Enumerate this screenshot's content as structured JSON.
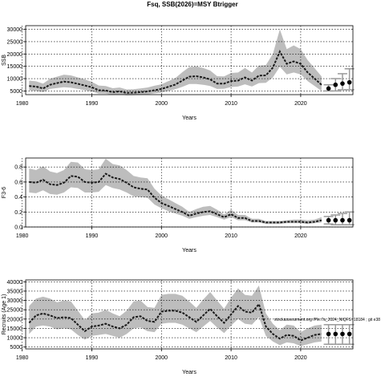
{
  "figure": {
    "title": "Fsq, SSB(2026)=MSY Btrigger",
    "annotation": "stockassessment.org /Ple.7a_2024_NIQFS r18184 ; git e38"
  },
  "chart_data": [
    {
      "type": "line",
      "xlabel": "Years",
      "ylabel": "SSB",
      "xlim": [
        1980.5,
        2027.5
      ],
      "ylim": [
        3500,
        31500
      ],
      "xticks": [
        1980,
        1990,
        2000,
        2010,
        2020
      ],
      "yticks": [
        5000,
        10000,
        15000,
        20000,
        25000,
        30000
      ],
      "grid": true,
      "x": [
        1981,
        1982,
        1983,
        1984,
        1985,
        1986,
        1987,
        1988,
        1989,
        1990,
        1991,
        1992,
        1993,
        1994,
        1995,
        1996,
        1997,
        1998,
        1999,
        2000,
        2001,
        2002,
        2003,
        2004,
        2005,
        2006,
        2007,
        2008,
        2009,
        2010,
        2011,
        2012,
        2013,
        2014,
        2015,
        2016,
        2017,
        2018,
        2019,
        2020,
        2021,
        2022,
        2023
      ],
      "estimate": [
        7000,
        6800,
        6000,
        7500,
        8200,
        8800,
        8500,
        7900,
        7200,
        6500,
        5300,
        5200,
        4500,
        4800,
        4200,
        4300,
        4500,
        4800,
        5300,
        5800,
        6700,
        7600,
        9200,
        10800,
        11000,
        10500,
        9700,
        8000,
        8000,
        9000,
        9200,
        10500,
        9200,
        11200,
        11300,
        14500,
        21000,
        16000,
        17000,
        16000,
        12500,
        10000,
        7500
      ],
      "lower": [
        5200,
        5000,
        4500,
        5800,
        6200,
        6500,
        6300,
        5800,
        5300,
        4800,
        3900,
        3900,
        3400,
        3600,
        3200,
        3300,
        3400,
        3600,
        4000,
        4300,
        5000,
        5700,
        6700,
        7800,
        7800,
        7500,
        7000,
        5800,
        5900,
        6600,
        6800,
        7700,
        6800,
        8200,
        8300,
        10500,
        14800,
        11700,
        12500,
        11700,
        9000,
        7000,
        5000
      ],
      "upper": [
        9200,
        8900,
        8000,
        9900,
        10800,
        11600,
        11300,
        10500,
        9700,
        8700,
        7200,
        7000,
        6100,
        6400,
        5600,
        5700,
        6000,
        6400,
        7100,
        7700,
        9000,
        10200,
        12600,
        14700,
        15000,
        14300,
        13300,
        11000,
        10900,
        12300,
        12500,
        14300,
        12500,
        15300,
        15500,
        20000,
        30000,
        22000,
        23500,
        22000,
        17500,
        14200,
        10900
      ],
      "projection": {
        "x": [
          2024,
          2025,
          2026,
          2027
        ],
        "values": [
          6000,
          7500,
          8000,
          8500
        ],
        "lower": [
          5000,
          5000,
          5500,
          5500
        ],
        "upper": [
          7500,
          10000,
          12000,
          14000
        ]
      }
    },
    {
      "type": "line",
      "xlabel": "Years",
      "ylabel": "F3-6",
      "xlim": [
        1980.5,
        2027.5
      ],
      "ylim": [
        0.0,
        0.92
      ],
      "xticks": [
        1980,
        1990,
        2000,
        2010,
        2020
      ],
      "yticks": [
        0.0,
        0.2,
        0.4,
        0.6,
        0.8
      ],
      "yticklabels": [
        "0.0",
        "0.2",
        "0.4",
        "0.6",
        "0.8"
      ],
      "grid": true,
      "x": [
        1981,
        1982,
        1983,
        1984,
        1985,
        1986,
        1987,
        1988,
        1989,
        1990,
        1991,
        1992,
        1993,
        1994,
        1995,
        1996,
        1997,
        1998,
        1999,
        2000,
        2001,
        2002,
        2003,
        2004,
        2005,
        2006,
        2007,
        2008,
        2009,
        2010,
        2011,
        2012,
        2013,
        2014,
        2015,
        2016,
        2017,
        2018,
        2019,
        2020,
        2021,
        2022,
        2023
      ],
      "estimate": [
        0.6,
        0.59,
        0.63,
        0.57,
        0.56,
        0.59,
        0.68,
        0.67,
        0.6,
        0.59,
        0.6,
        0.71,
        0.66,
        0.64,
        0.59,
        0.53,
        0.51,
        0.5,
        0.39,
        0.32,
        0.28,
        0.24,
        0.2,
        0.15,
        0.18,
        0.2,
        0.21,
        0.17,
        0.13,
        0.17,
        0.12,
        0.12,
        0.08,
        0.08,
        0.06,
        0.06,
        0.06,
        0.07,
        0.07,
        0.07,
        0.06,
        0.07,
        0.09
      ],
      "lower": [
        0.46,
        0.45,
        0.49,
        0.44,
        0.43,
        0.46,
        0.53,
        0.52,
        0.46,
        0.46,
        0.47,
        0.56,
        0.52,
        0.5,
        0.46,
        0.41,
        0.4,
        0.39,
        0.3,
        0.25,
        0.21,
        0.18,
        0.15,
        0.11,
        0.13,
        0.15,
        0.16,
        0.13,
        0.1,
        0.13,
        0.09,
        0.09,
        0.06,
        0.06,
        0.04,
        0.04,
        0.04,
        0.05,
        0.05,
        0.05,
        0.04,
        0.05,
        0.06
      ],
      "upper": [
        0.78,
        0.76,
        0.81,
        0.74,
        0.72,
        0.76,
        0.87,
        0.86,
        0.77,
        0.76,
        0.77,
        0.91,
        0.84,
        0.82,
        0.76,
        0.68,
        0.66,
        0.65,
        0.51,
        0.42,
        0.37,
        0.32,
        0.27,
        0.2,
        0.24,
        0.27,
        0.28,
        0.23,
        0.17,
        0.23,
        0.16,
        0.16,
        0.11,
        0.11,
        0.08,
        0.08,
        0.08,
        0.09,
        0.1,
        0.1,
        0.09,
        0.1,
        0.13
      ],
      "projection": {
        "x": [
          2024,
          2025,
          2026,
          2027
        ],
        "values": [
          0.09,
          0.09,
          0.09,
          0.09
        ],
        "lower": [
          0.04,
          0.03,
          0.03,
          0.03
        ],
        "upper": [
          0.14,
          0.16,
          0.18,
          0.2
        ]
      }
    },
    {
      "type": "line",
      "xlabel": "Years",
      "ylabel": "Recruits (Age 1)",
      "xlim": [
        1980.5,
        2027.5
      ],
      "ylim": [
        4000,
        41000
      ],
      "xticks": [
        1980,
        1990,
        2000,
        2010,
        2020
      ],
      "yticks": [
        5000,
        10000,
        15000,
        20000,
        25000,
        30000,
        35000,
        40000
      ],
      "grid": true,
      "x": [
        1981,
        1982,
        1983,
        1984,
        1985,
        1986,
        1987,
        1988,
        1989,
        1990,
        1991,
        1992,
        1993,
        1994,
        1995,
        1996,
        1997,
        1998,
        1999,
        2000,
        2001,
        2002,
        2003,
        2004,
        2005,
        2006,
        2007,
        2008,
        2009,
        2010,
        2011,
        2012,
        2013,
        2014,
        2015,
        2016,
        2017,
        2018,
        2019,
        2020,
        2021,
        2022,
        2023
      ],
      "estimate": [
        18000,
        22000,
        23000,
        22000,
        20500,
        21000,
        20500,
        17000,
        13500,
        16000,
        16500,
        17500,
        16000,
        15000,
        17000,
        21000,
        21500,
        19000,
        18500,
        24000,
        24500,
        24500,
        23500,
        21000,
        18500,
        22000,
        25500,
        21500,
        18000,
        22500,
        27000,
        24000,
        23500,
        28000,
        16000,
        12000,
        9500,
        11500,
        11000,
        8500,
        10000,
        11500,
        12000
      ],
      "lower": [
        12000,
        16000,
        16500,
        16000,
        14500,
        15000,
        14500,
        11500,
        9000,
        11000,
        11500,
        12000,
        11000,
        10000,
        12000,
        15000,
        15500,
        13500,
        13000,
        17500,
        18000,
        18000,
        17000,
        15000,
        13000,
        16000,
        19000,
        15500,
        12500,
        16500,
        20000,
        17500,
        17000,
        21000,
        11000,
        8000,
        6000,
        7500,
        7000,
        5500,
        6500,
        7500,
        8000
      ],
      "upper": [
        27000,
        31000,
        32000,
        31000,
        29000,
        30000,
        29500,
        24500,
        19500,
        23000,
        23500,
        25000,
        23000,
        21500,
        24500,
        29500,
        30000,
        26500,
        26000,
        33000,
        33500,
        33500,
        32500,
        29500,
        26000,
        30500,
        34500,
        30000,
        25500,
        31500,
        36500,
        33000,
        32500,
        38000,
        23000,
        17500,
        14000,
        17000,
        16500,
        13000,
        15000,
        16500,
        17000
      ],
      "projection": {
        "x": [
          2024,
          2025,
          2026,
          2027
        ],
        "values": [
          12000,
          12000,
          12000,
          12000
        ],
        "lower": [
          6500,
          6500,
          6500,
          6500
        ],
        "upper": [
          17000,
          17000,
          17000,
          17000
        ]
      }
    }
  ]
}
